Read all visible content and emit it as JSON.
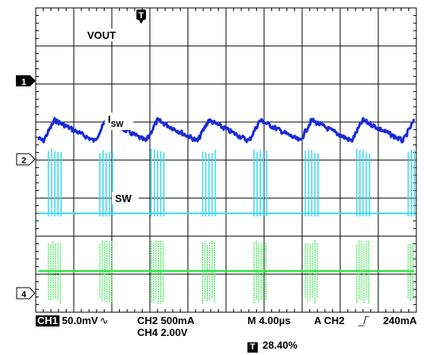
{
  "chart_data": {
    "type": "line",
    "title": "",
    "xlabel": "",
    "ylabel": "",
    "grid": true,
    "grid_divisions": {
      "x": 10,
      "y": 8
    },
    "trigger_marker": "T",
    "traces": [
      {
        "channel": "1",
        "label": "VOUT",
        "color": "#1a2bd6"
      },
      {
        "channel": "2",
        "label": "I",
        "label_sub": "SW",
        "color": "#3cd8f0"
      },
      {
        "channel": "4",
        "label": "SW",
        "color": "#33e64a"
      }
    ],
    "ch1_ripple": {
      "unit": "div",
      "period_div": 1.35,
      "amplitude_div": 0.55,
      "baseline_div": 0.5,
      "ramp_up_fraction": 0.22
    }
  },
  "status": {
    "ch1_badge": "CH1",
    "ch1_scale": "50.0mV",
    "ch1_coupling_symbol": "∿",
    "ch2_scale": "CH2 500mA",
    "ch4_scale": "CH4 2.00V",
    "timebase": "M 4.00µs",
    "trigger": "A CH2",
    "trigger_edge_symbol": "_/‾",
    "trigger_level": "240mA",
    "trigger_position_badge": "T",
    "trigger_position": "28.40%"
  }
}
